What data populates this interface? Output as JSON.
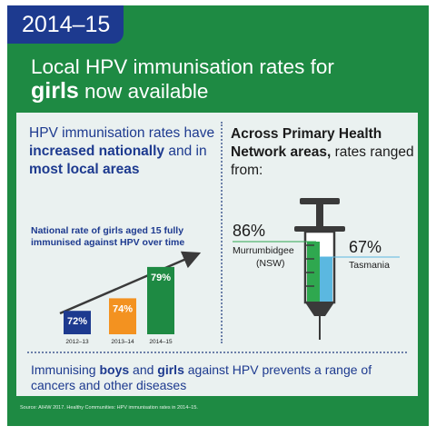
{
  "year_badge": "2014–15",
  "headline": {
    "line1": "Local HPV immunisation rates for",
    "line2_bold": "girls",
    "line2_rest": " now available"
  },
  "left_heading": {
    "p1": "HPV immunisation rates have ",
    "b1": "increased nationally",
    "p2": " and in ",
    "b2": "most local areas"
  },
  "right_heading": {
    "bold": "Across Primary Health Network areas,",
    "rest": " rates ranged from:"
  },
  "chart_data": {
    "type": "bar",
    "title": "National rate of girls aged 15 fully immunised against HPV over time",
    "categories": [
      "2012–13",
      "2013–14",
      "2014–15"
    ],
    "values": [
      72,
      74,
      79
    ],
    "value_labels": [
      "72%",
      "74%",
      "79%"
    ],
    "colors": [
      "#1d3a8f",
      "#f39220",
      "#1e8a43"
    ]
  },
  "syringe": {
    "high_value": "86%",
    "high_place": "Murrumbidgee",
    "high_state": "(NSW)",
    "low_value": "67%",
    "low_place": "Tasmania",
    "high_color": "#2fa84f",
    "low_color": "#5bb8e0"
  },
  "bottom": {
    "p1": "Immunising ",
    "b1": "boys",
    "p2": " and ",
    "b2": "girls",
    "p3": " against HPV prevents a range of cancers and other diseases"
  },
  "source": "Source: AIHW 2017. Healthy Communities: HPV immunisation rates in 2014–15.",
  "colors": {
    "green": "#1e8a43",
    "navy": "#1d3a8f",
    "card": "#eaf1f0"
  }
}
